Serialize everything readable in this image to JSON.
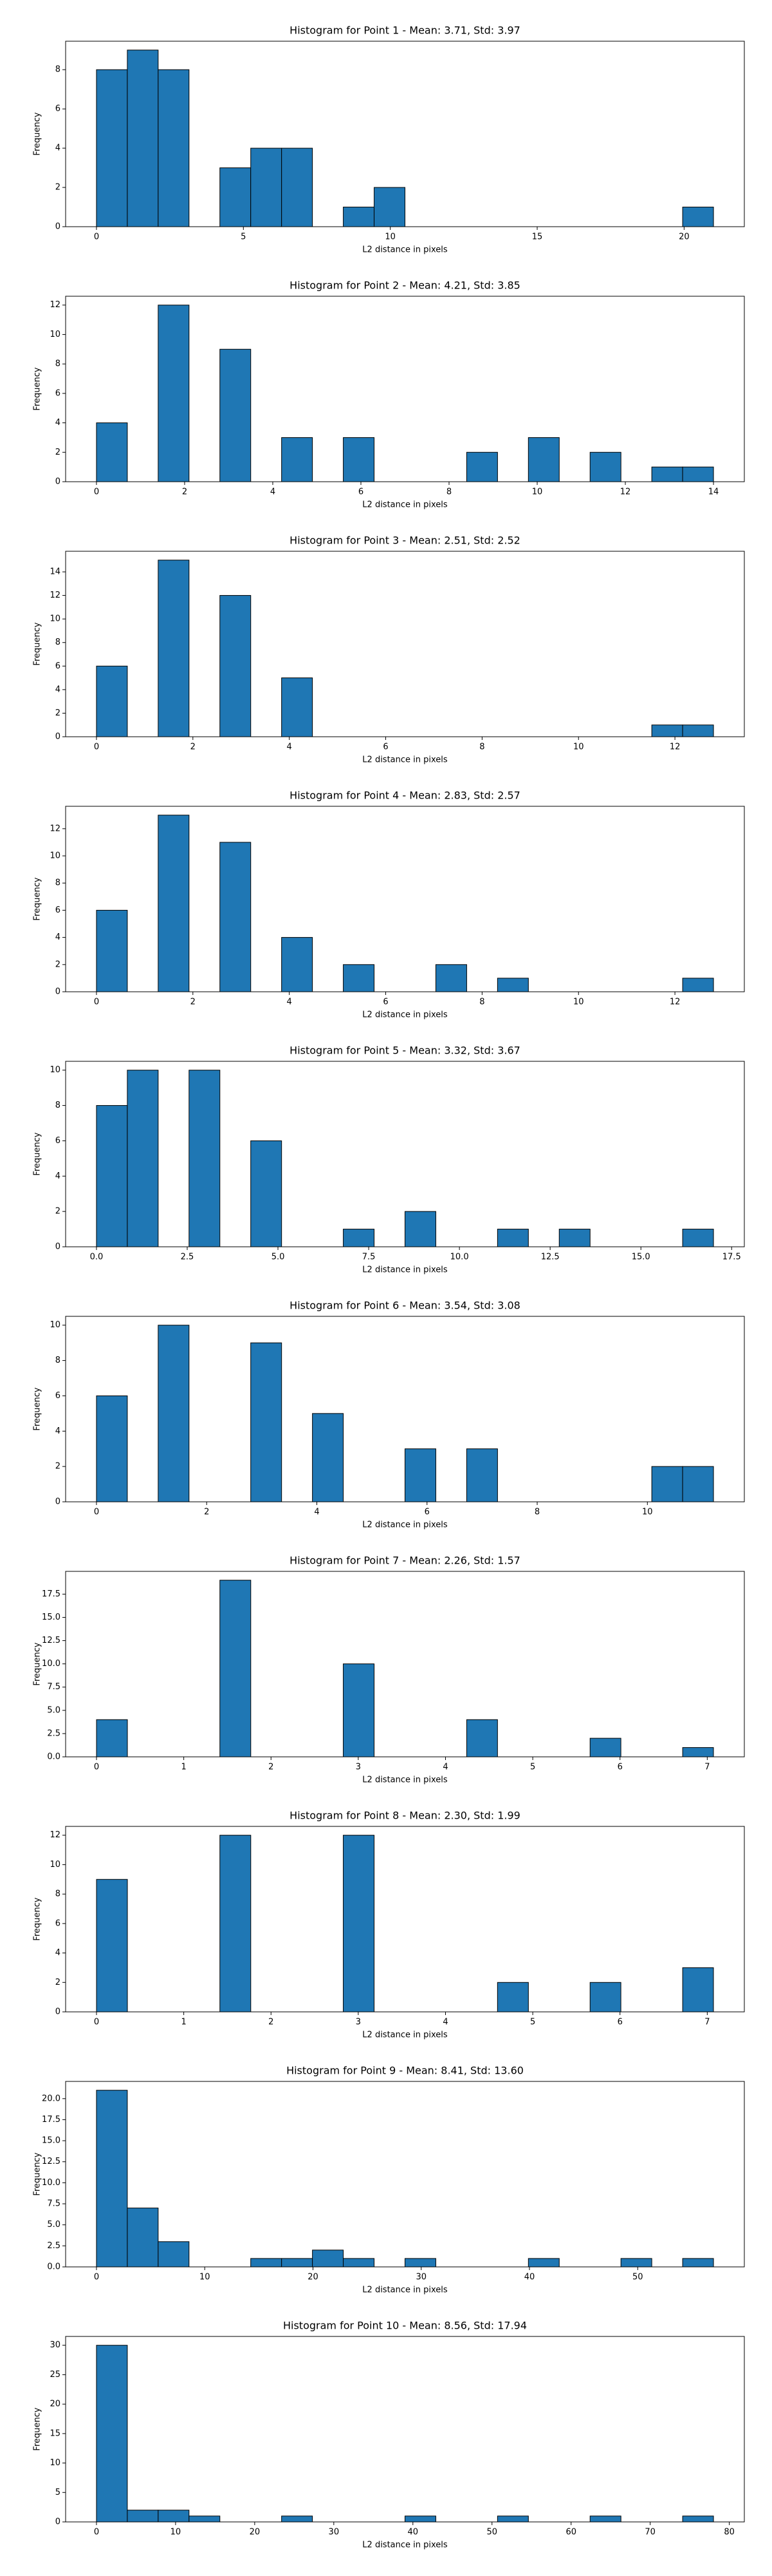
{
  "chart_data": [
    {
      "type": "histogram",
      "title": "Histogram for Point 1 - Mean: 3.71, Std: 3.97",
      "xlabel": "L2 distance in pixels",
      "ylabel": "Frequency",
      "color": "#1f77b4",
      "edgecolor": "#000000",
      "bins": [
        0,
        1.05,
        2.1,
        3.15,
        4.2,
        5.25,
        6.3,
        7.35,
        8.4,
        9.45,
        10.5,
        11.55,
        12.6,
        13.65,
        14.7,
        15.75,
        16.8,
        17.85,
        18.9,
        19.95,
        21
      ],
      "values": [
        8,
        9,
        8,
        0,
        3,
        4,
        4,
        0,
        1,
        2,
        0,
        0,
        0,
        0,
        0,
        0,
        0,
        0,
        0,
        1
      ],
      "xlim": [
        -1.05,
        22.05
      ],
      "ylim": [
        0,
        9.45
      ],
      "xticks": [
        0,
        5,
        10,
        15,
        20
      ],
      "yticks": [
        0,
        2,
        4,
        6,
        8
      ]
    },
    {
      "type": "histogram",
      "title": "Histogram for Point 2 - Mean: 4.21, Std: 3.85",
      "xlabel": "L2 distance in pixels",
      "ylabel": "Frequency",
      "color": "#1f77b4",
      "edgecolor": "#000000",
      "bins": [
        0,
        0.7,
        1.4,
        2.1,
        2.8,
        3.5,
        4.2,
        4.9,
        5.6,
        6.3,
        7,
        7.7,
        8.4,
        9.1,
        9.8,
        10.5,
        11.2,
        11.9,
        12.6,
        13.3,
        14
      ],
      "values": [
        4,
        0,
        12,
        0,
        9,
        0,
        3,
        0,
        3,
        0,
        0,
        0,
        2,
        0,
        3,
        0,
        2,
        0,
        1,
        1
      ],
      "xlim": [
        -0.7,
        14.7
      ],
      "ylim": [
        0,
        12.6
      ],
      "xticks": [
        0,
        2,
        4,
        6,
        8,
        10,
        12,
        14
      ],
      "yticks": [
        0,
        2,
        4,
        6,
        8,
        10,
        12
      ]
    },
    {
      "type": "histogram",
      "title": "Histogram for Point 3 - Mean: 2.51, Std: 2.52",
      "xlabel": "L2 distance in pixels",
      "ylabel": "Frequency",
      "color": "#1f77b4",
      "edgecolor": "#000000",
      "bins": [
        0,
        0.64,
        1.28,
        1.92,
        2.56,
        3.2,
        3.84,
        4.48,
        5.12,
        5.76,
        6.4,
        7.04,
        7.68,
        8.32,
        8.96,
        9.6,
        10.24,
        10.88,
        11.52,
        12.16,
        12.8
      ],
      "values": [
        6,
        0,
        15,
        0,
        12,
        0,
        5,
        0,
        0,
        0,
        0,
        0,
        0,
        0,
        0,
        0,
        0,
        0,
        1,
        1
      ],
      "xlim": [
        -0.64,
        13.44
      ],
      "ylim": [
        0,
        15.75
      ],
      "xticks": [
        0,
        2,
        4,
        6,
        8,
        10,
        12
      ],
      "yticks": [
        0,
        2,
        4,
        6,
        8,
        10,
        12,
        14
      ]
    },
    {
      "type": "histogram",
      "title": "Histogram for Point 4 - Mean: 2.83, Std: 2.57",
      "xlabel": "L2 distance in pixels",
      "ylabel": "Frequency",
      "color": "#1f77b4",
      "edgecolor": "#000000",
      "bins": [
        0,
        0.64,
        1.28,
        1.92,
        2.56,
        3.2,
        3.84,
        4.48,
        5.12,
        5.76,
        6.4,
        7.04,
        7.68,
        8.32,
        8.96,
        9.6,
        10.24,
        10.88,
        11.52,
        12.16,
        12.8
      ],
      "values": [
        6,
        0,
        13,
        0,
        11,
        0,
        4,
        0,
        2,
        0,
        0,
        2,
        0,
        1,
        0,
        0,
        0,
        0,
        0,
        1
      ],
      "xlim": [
        -0.64,
        13.44
      ],
      "ylim": [
        0,
        13.65
      ],
      "xticks": [
        0,
        2,
        4,
        6,
        8,
        10,
        12
      ],
      "yticks": [
        0,
        2,
        4,
        6,
        8,
        10,
        12
      ]
    },
    {
      "type": "histogram",
      "title": "Histogram for Point 5 - Mean: 3.32, Std: 3.67",
      "xlabel": "L2 distance in pixels",
      "ylabel": "Frequency",
      "color": "#1f77b4",
      "edgecolor": "#000000",
      "bins": [
        0,
        0.85,
        1.7,
        2.55,
        3.4,
        4.25,
        5.1,
        5.95,
        6.8,
        7.65,
        8.5,
        9.35,
        10.2,
        11.05,
        11.9,
        12.75,
        13.6,
        14.45,
        15.3,
        16.15,
        17
      ],
      "values": [
        8,
        10,
        0,
        10,
        0,
        6,
        0,
        0,
        1,
        0,
        2,
        0,
        0,
        1,
        0,
        1,
        0,
        0,
        0,
        1
      ],
      "xlim": [
        -0.85,
        17.85
      ],
      "ylim": [
        0,
        10.5
      ],
      "xticks": [
        {
          "value": 0,
          "label": "0.0"
        },
        2.5,
        {
          "value": 5,
          "label": "5.0"
        },
        7.5,
        {
          "value": 10,
          "label": "10.0"
        },
        12.5,
        {
          "value": 15,
          "label": "15.0"
        },
        17.5
      ],
      "yticks": [
        0,
        2,
        4,
        6,
        8,
        10
      ]
    },
    {
      "type": "histogram",
      "title": "Histogram for Point 6 - Mean: 3.54, Std: 3.08",
      "xlabel": "L2 distance in pixels",
      "ylabel": "Frequency",
      "color": "#1f77b4",
      "edgecolor": "#000000",
      "bins": [
        0,
        0.56,
        1.12,
        1.68,
        2.24,
        2.8,
        3.36,
        3.92,
        4.48,
        5.04,
        5.6,
        6.16,
        6.72,
        7.28,
        7.84,
        8.4,
        8.96,
        9.52,
        10.08,
        10.64,
        11.2
      ],
      "values": [
        6,
        0,
        10,
        0,
        0,
        9,
        0,
        5,
        0,
        0,
        3,
        0,
        3,
        0,
        0,
        0,
        0,
        0,
        2,
        2
      ],
      "xlim": [
        -0.56,
        11.76
      ],
      "ylim": [
        0,
        10.5
      ],
      "xticks": [
        0,
        2,
        4,
        6,
        8,
        10
      ],
      "yticks": [
        0,
        2,
        4,
        6,
        8,
        10
      ]
    },
    {
      "type": "histogram",
      "title": "Histogram for Point 7 - Mean: 2.26, Std: 1.57",
      "xlabel": "L2 distance in pixels",
      "ylabel": "Frequency",
      "color": "#1f77b4",
      "edgecolor": "#000000",
      "bins": [
        0,
        0.354,
        0.707,
        1.061,
        1.414,
        1.768,
        2.121,
        2.475,
        2.828,
        3.182,
        3.536,
        3.889,
        4.243,
        4.596,
        4.95,
        5.303,
        5.657,
        6.01,
        6.364,
        6.718,
        7.071
      ],
      "values": [
        4,
        0,
        0,
        0,
        19,
        0,
        0,
        0,
        10,
        0,
        0,
        0,
        4,
        0,
        0,
        0,
        2,
        0,
        0,
        1
      ],
      "xlim": [
        -0.354,
        7.425
      ],
      "ylim": [
        0,
        19.95
      ],
      "xticks": [
        0,
        1,
        2,
        3,
        4,
        5,
        6,
        7
      ],
      "yticks": [
        {
          "value": 0,
          "label": "0.0"
        },
        2.5,
        {
          "value": 5,
          "label": "5.0"
        },
        7.5,
        {
          "value": 10,
          "label": "10.0"
        },
        12.5,
        {
          "value": 15,
          "label": "15.0"
        },
        17.5
      ]
    },
    {
      "type": "histogram",
      "title": "Histogram for Point 8 - Mean: 2.30, Std: 1.99",
      "xlabel": "L2 distance in pixels",
      "ylabel": "Frequency",
      "color": "#1f77b4",
      "edgecolor": "#000000",
      "bins": [
        0,
        0.354,
        0.707,
        1.061,
        1.414,
        1.768,
        2.121,
        2.475,
        2.828,
        3.182,
        3.536,
        3.889,
        4.243,
        4.596,
        4.95,
        5.303,
        5.657,
        6.01,
        6.364,
        6.718,
        7.071
      ],
      "values": [
        9,
        0,
        0,
        0,
        12,
        0,
        0,
        0,
        12,
        0,
        0,
        0,
        0,
        2,
        0,
        0,
        2,
        0,
        0,
        3
      ],
      "xlim": [
        -0.354,
        7.425
      ],
      "ylim": [
        0,
        12.6
      ],
      "xticks": [
        0,
        1,
        2,
        3,
        4,
        5,
        6,
        7
      ],
      "yticks": [
        0,
        2,
        4,
        6,
        8,
        10,
        12
      ]
    },
    {
      "type": "histogram",
      "title": "Histogram for Point 9 - Mean: 8.41, Std: 13.60",
      "xlabel": "L2 distance in pixels",
      "ylabel": "Frequency",
      "color": "#1f77b4",
      "edgecolor": "#000000",
      "bins": [
        0,
        2.85,
        5.7,
        8.55,
        11.4,
        14.25,
        17.1,
        19.95,
        22.8,
        25.65,
        28.5,
        31.35,
        34.2,
        37.05,
        39.9,
        42.75,
        45.6,
        48.45,
        51.3,
        54.15,
        57
      ],
      "values": [
        21,
        7,
        3,
        0,
        0,
        1,
        1,
        2,
        1,
        0,
        1,
        0,
        0,
        0,
        1,
        0,
        0,
        1,
        0,
        1
      ],
      "xlim": [
        -2.85,
        59.85
      ],
      "ylim": [
        0,
        22.05
      ],
      "xticks": [
        0,
        10,
        20,
        30,
        40,
        50
      ],
      "yticks": [
        {
          "value": 0,
          "label": "0.0"
        },
        2.5,
        {
          "value": 5,
          "label": "5.0"
        },
        7.5,
        {
          "value": 10,
          "label": "10.0"
        },
        12.5,
        {
          "value": 15,
          "label": "15.0"
        },
        17.5,
        {
          "value": 20,
          "label": "20.0"
        }
      ]
    },
    {
      "type": "histogram",
      "title": "Histogram for Point 10 - Mean: 8.56, Std: 17.94",
      "xlabel": "L2 distance in pixels",
      "ylabel": "Frequency",
      "color": "#1f77b4",
      "edgecolor": "#000000",
      "bins": [
        0,
        3.9,
        7.8,
        11.7,
        15.6,
        19.5,
        23.4,
        27.3,
        31.2,
        35.1,
        39,
        42.9,
        46.8,
        50.7,
        54.6,
        58.5,
        62.4,
        66.3,
        70.2,
        74.1,
        78
      ],
      "values": [
        30,
        2,
        2,
        1,
        0,
        0,
        1,
        0,
        0,
        0,
        1,
        0,
        0,
        1,
        0,
        0,
        1,
        0,
        0,
        1
      ],
      "xlim": [
        -3.9,
        81.9
      ],
      "ylim": [
        0,
        31.5
      ],
      "xticks": [
        0,
        10,
        20,
        30,
        40,
        50,
        60,
        70,
        80
      ],
      "yticks": [
        0,
        5,
        10,
        15,
        20,
        25,
        30
      ]
    }
  ]
}
